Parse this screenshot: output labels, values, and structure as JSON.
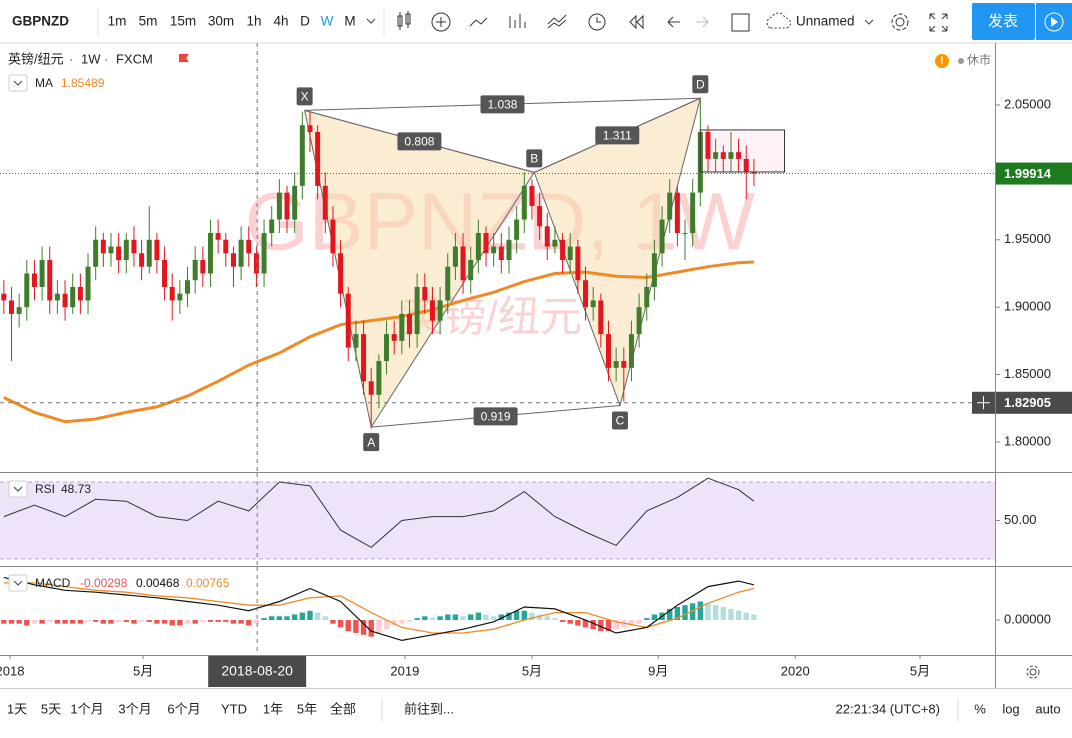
{
  "toolbar": {
    "symbol": "GBPNZD",
    "intervals": [
      "1m",
      "5m",
      "15m",
      "30m",
      "1h",
      "4h",
      "D",
      "W",
      "M"
    ],
    "layout_name": "Unnamed",
    "publish": "发表"
  },
  "legend": {
    "name": "英镑/纽元",
    "interval": "1W",
    "source": "FXCM",
    "status": "休市"
  },
  "watermark": {
    "symbol": "GBPNZD, 1W",
    "name": "英镑/纽元"
  },
  "chart_data": [
    {
      "type": "candlestick",
      "open": [
        1.91,
        1.905,
        1.895,
        1.9,
        1.925,
        1.915,
        1.935,
        1.905,
        1.91,
        1.9,
        1.915,
        1.905,
        1.93,
        1.95,
        1.94,
        1.945,
        1.935,
        1.95,
        1.94,
        1.93,
        1.95,
        1.935,
        1.915,
        1.905,
        1.91,
        1.92,
        1.935,
        1.925,
        1.955,
        1.95,
        1.94,
        1.93,
        1.95,
        1.94,
        1.925,
        1.955,
        1.965,
        1.985,
        1.965,
        1.99,
        2.035,
        2.03,
        1.99,
        1.965,
        1.94,
        1.91,
        1.87,
        1.88,
        1.845,
        1.835,
        1.86,
        1.88,
        1.875,
        1.895,
        1.88,
        1.915,
        1.905,
        1.89,
        1.905,
        1.93,
        1.945,
        1.92,
        1.935,
        1.955,
        1.94,
        1.945,
        1.935,
        1.95,
        1.965,
        1.99,
        1.975,
        1.96,
        1.945,
        1.95,
        1.935,
        1.945,
        1.92,
        1.9,
        1.905,
        1.88,
        1.855,
        1.86,
        1.855,
        1.88,
        1.9,
        1.915,
        1.94,
        1.965,
        1.985,
        1.955,
        1.955,
        1.985,
        2.03,
        2.01,
        2.015,
        2.01,
        2.015,
        2.01,
        2.0
      ],
      "high": [
        1.92,
        1.915,
        1.91,
        1.935,
        1.935,
        1.945,
        1.945,
        1.92,
        1.92,
        1.925,
        1.925,
        1.94,
        1.96,
        1.955,
        1.955,
        1.955,
        1.955,
        1.96,
        1.95,
        1.975,
        1.955,
        1.945,
        1.925,
        1.92,
        1.93,
        1.945,
        1.945,
        1.965,
        1.965,
        1.955,
        1.945,
        1.96,
        1.96,
        1.945,
        1.965,
        1.975,
        1.995,
        1.99,
        2.0,
        2.045,
        2.045,
        2.035,
        2.0,
        1.975,
        1.95,
        1.915,
        1.89,
        1.89,
        1.855,
        1.865,
        1.89,
        1.89,
        1.905,
        1.905,
        1.925,
        1.925,
        1.915,
        1.915,
        1.94,
        1.955,
        1.955,
        1.945,
        1.965,
        1.96,
        1.955,
        1.955,
        1.96,
        1.975,
        2.0,
        1.995,
        1.985,
        1.97,
        1.96,
        1.955,
        1.955,
        1.95,
        1.93,
        1.915,
        1.91,
        1.89,
        1.87,
        1.87,
        1.89,
        1.91,
        1.925,
        1.95,
        1.975,
        1.995,
        1.99,
        1.965,
        1.995,
        2.055,
        2.035,
        2.025,
        2.02,
        2.03,
        2.025,
        2.02,
        2.01
      ],
      "low": [
        1.895,
        1.86,
        1.885,
        1.89,
        1.905,
        1.905,
        1.895,
        1.895,
        1.89,
        1.895,
        1.895,
        1.895,
        1.92,
        1.93,
        1.93,
        1.925,
        1.925,
        1.93,
        1.92,
        1.925,
        1.925,
        1.905,
        1.89,
        1.895,
        1.9,
        1.91,
        1.915,
        1.915,
        1.94,
        1.93,
        1.915,
        1.92,
        1.93,
        1.915,
        1.915,
        1.945,
        1.955,
        1.955,
        1.955,
        1.98,
        2.015,
        1.98,
        1.955,
        1.93,
        1.9,
        1.86,
        1.86,
        1.835,
        1.81,
        1.825,
        1.85,
        1.865,
        1.865,
        1.87,
        1.87,
        1.895,
        1.88,
        1.88,
        1.895,
        1.92,
        1.91,
        1.91,
        1.925,
        1.93,
        1.93,
        1.925,
        1.925,
        1.94,
        1.955,
        1.965,
        1.95,
        1.935,
        1.94,
        1.925,
        1.925,
        1.91,
        1.89,
        1.89,
        1.87,
        1.845,
        1.845,
        1.83,
        1.845,
        1.87,
        1.89,
        1.905,
        1.93,
        1.955,
        1.945,
        1.935,
        1.945,
        1.975,
        2.0,
        2.0,
        2.0,
        2.0,
        2.0,
        1.98,
        1.99
      ],
      "close": [
        1.905,
        1.895,
        1.9,
        1.925,
        1.915,
        1.935,
        1.905,
        1.91,
        1.9,
        1.915,
        1.905,
        1.93,
        1.95,
        1.94,
        1.945,
        1.935,
        1.95,
        1.94,
        1.93,
        1.95,
        1.935,
        1.915,
        1.905,
        1.91,
        1.92,
        1.935,
        1.925,
        1.955,
        1.95,
        1.94,
        1.93,
        1.95,
        1.94,
        1.925,
        1.955,
        1.965,
        1.985,
        1.965,
        1.99,
        2.035,
        2.03,
        1.99,
        1.965,
        1.94,
        1.91,
        1.87,
        1.88,
        1.845,
        1.835,
        1.86,
        1.88,
        1.875,
        1.895,
        1.88,
        1.915,
        1.905,
        1.89,
        1.905,
        1.93,
        1.945,
        1.92,
        1.935,
        1.955,
        1.94,
        1.945,
        1.935,
        1.95,
        1.965,
        1.99,
        1.975,
        1.96,
        1.945,
        1.95,
        1.935,
        1.945,
        1.92,
        1.9,
        1.905,
        1.88,
        1.855,
        1.86,
        1.855,
        1.88,
        1.9,
        1.915,
        1.94,
        1.965,
        1.985,
        1.955,
        1.955,
        1.985,
        2.03,
        2.01,
        2.015,
        2.01,
        2.015,
        2.01,
        2.0,
        1.99914
      ],
      "up_color": "#3f7d2c",
      "down_color": "#e3161d",
      "xlim": [
        -0.5,
        129.5
      ],
      "xticks": [
        {
          "value": 0.8,
          "label": "2018"
        },
        {
          "value": 18.2,
          "label": "5月"
        },
        {
          "value": 52.4,
          "label": "2019"
        },
        {
          "value": 69,
          "label": "5月"
        },
        {
          "value": 85.5,
          "label": "9月"
        },
        {
          "value": 103.4,
          "label": "2020"
        },
        {
          "value": 119.7,
          "label": "5月"
        }
      ],
      "ylim": [
        1.7777,
        2.096
      ],
      "yticks": [
        {
          "value": 1.8,
          "label": "1.80000"
        },
        {
          "value": 1.85,
          "label": "1.85000"
        },
        {
          "value": 1.9,
          "label": "1.90000"
        },
        {
          "value": 1.95,
          "label": "1.95000"
        },
        {
          "value": 2.05,
          "label": "2.05000"
        }
      ],
      "indicator": {
        "name": "MA",
        "value": 1.85489,
        "color": "#f08a24",
        "x": [
          0,
          4,
          8,
          12,
          16,
          20,
          24,
          28,
          32,
          36,
          40,
          44,
          48,
          52,
          56,
          60,
          64,
          68,
          72,
          76,
          80,
          84,
          88,
          92,
          96,
          98
        ],
        "values": [
          1.833,
          1.822,
          1.815,
          1.817,
          1.822,
          1.826,
          1.834,
          1.845,
          1.857,
          1.866,
          1.878,
          1.887,
          1.89,
          1.893,
          1.898,
          1.905,
          1.911,
          1.919,
          1.925,
          1.926,
          1.923,
          1.922,
          1.926,
          1.93,
          1.933,
          1.9335
        ]
      },
      "last_price": 1.99914,
      "last_price_color": "#1f7a22",
      "cursor": {
        "x": {
          "value": 33.1,
          "label": "2018-08-20"
        },
        "price": 1.82905
      },
      "pattern": {
        "color": "#f7dcb0",
        "points": [
          {
            "label": "X",
            "x": 39.3,
            "y": 2.046
          },
          {
            "label": "A",
            "x": 48,
            "y": 1.811
          },
          {
            "label": "B",
            "x": 69.3,
            "y": 2.0
          },
          {
            "label": "C",
            "x": 80.5,
            "y": 1.827
          },
          {
            "label": "D",
            "x": 91,
            "y": 2.055
          }
        ],
        "ratios": [
          1.038,
          0.808,
          1.311,
          0.919
        ]
      },
      "rectangle": {
        "x": [
          91,
          102
        ],
        "y": [
          2.0003,
          2.0315
        ]
      }
    },
    {
      "type": "line",
      "name": "RSI",
      "value": 48.73,
      "color": "#333333",
      "band": [
        30,
        70
      ],
      "band_color": "#efe3f9",
      "x": [
        0,
        4,
        8,
        12,
        16,
        20,
        24,
        28,
        32,
        36,
        40,
        44,
        48,
        52,
        56,
        60,
        64,
        68,
        72,
        76,
        80,
        84,
        88,
        92,
        96,
        98
      ],
      "values": [
        52,
        58,
        52,
        61,
        60,
        52,
        50,
        60,
        55,
        70,
        68,
        45,
        36,
        50,
        52,
        52,
        55,
        65,
        52,
        44,
        37,
        55,
        62,
        72,
        66,
        60
      ],
      "ylim": [
        26.3,
        74.7
      ],
      "yticks": [
        {
          "value": 50,
          "label": "50.00"
        }
      ]
    },
    {
      "type": "macd",
      "name": "MACD",
      "histogram_value": -0.00298,
      "macd_value": 0.00468,
      "signal_value": 0.00765,
      "macd_color": "#111111",
      "signal_color": "#f08a24",
      "histogram_colors": {
        "up_grow": "#26a69a",
        "up_fall": "#b2dfdb",
        "down_grow": "#ef5350",
        "down_fall": "#ffcdd2"
      },
      "x": [
        0,
        4,
        8,
        12,
        16,
        20,
        24,
        28,
        32,
        36,
        40,
        44,
        48,
        52,
        56,
        60,
        64,
        68,
        72,
        76,
        80,
        84,
        88,
        92,
        96,
        98
      ],
      "macd": [
        0.023,
        0.019,
        0.016,
        0.015,
        0.0135,
        0.012,
        0.01,
        0.008,
        0.005,
        0.01,
        0.017,
        0.01,
        -0.006,
        -0.011,
        -0.008,
        -0.005,
        -0.001,
        0.007,
        0.006,
        0,
        -0.007,
        -0.004,
        0.008,
        0.018,
        0.021,
        0.019
      ],
      "signal": [
        0.02,
        0.02,
        0.018,
        0.016,
        0.015,
        0.013,
        0.012,
        0.01,
        0.008,
        0.008,
        0.012,
        0.013,
        0.004,
        -0.004,
        -0.007,
        -0.007,
        -0.005,
        0,
        0.004,
        0.004,
        -0.001,
        -0.004,
        0.001,
        0.009,
        0.015,
        0.017
      ],
      "histogram": [
        -0.002,
        -0.002,
        -0.002,
        -0.003,
        -0.002,
        -0.002,
        -0.001,
        -0.002,
        -0.002,
        -0.002,
        -0.002,
        -0.001,
        -0.001,
        -0.002,
        -0.002,
        -0.001,
        -0.001,
        -0.002,
        -0.001,
        -0.001,
        -0.002,
        -0.002,
        -0.003,
        -0.003,
        -0.002,
        -0.002,
        -0.001,
        -0.001,
        -0.001,
        -0.001,
        -0.002,
        -0.002,
        -0.003,
        -0.002,
        0.001,
        0.002,
        0.002,
        0.002,
        0.003,
        0.004,
        0.005,
        0.004,
        0.002,
        -0.002,
        -0.004,
        -0.006,
        -0.007,
        -0.008,
        -0.009,
        -0.007,
        -0.005,
        -0.003,
        -0.002,
        -0.001,
        0.001,
        0.002,
        0.001,
        0.002,
        0.003,
        0.003,
        0.002,
        0.003,
        0.004,
        0.003,
        0.002,
        0.003,
        0.004,
        0.005,
        0.005,
        0.004,
        0.003,
        0.002,
        0.001,
        -0.001,
        -0.002,
        -0.003,
        -0.004,
        -0.005,
        -0.006,
        -0.006,
        -0.005,
        -0.004,
        -0.003,
        -0.002,
        0.001,
        0.003,
        0.004,
        0.006,
        0.007,
        0.008,
        0.009,
        0.01,
        0.009,
        0.008,
        0.007,
        0.006,
        0.005,
        0.004,
        0.003
      ],
      "ylim": [
        -0.0189,
        0.0286
      ],
      "yticks": [
        {
          "value": 0,
          "label": "0.00000"
        }
      ]
    }
  ],
  "bottom_bar": {
    "ranges": [
      "1天",
      "5天",
      "1个月",
      "3个月",
      "6个月",
      "YTD",
      "1年",
      "5年",
      "全部"
    ],
    "goto": "前往到...",
    "time": "22:21:34 (UTC+8)",
    "options": [
      "%",
      "log",
      "auto"
    ]
  }
}
